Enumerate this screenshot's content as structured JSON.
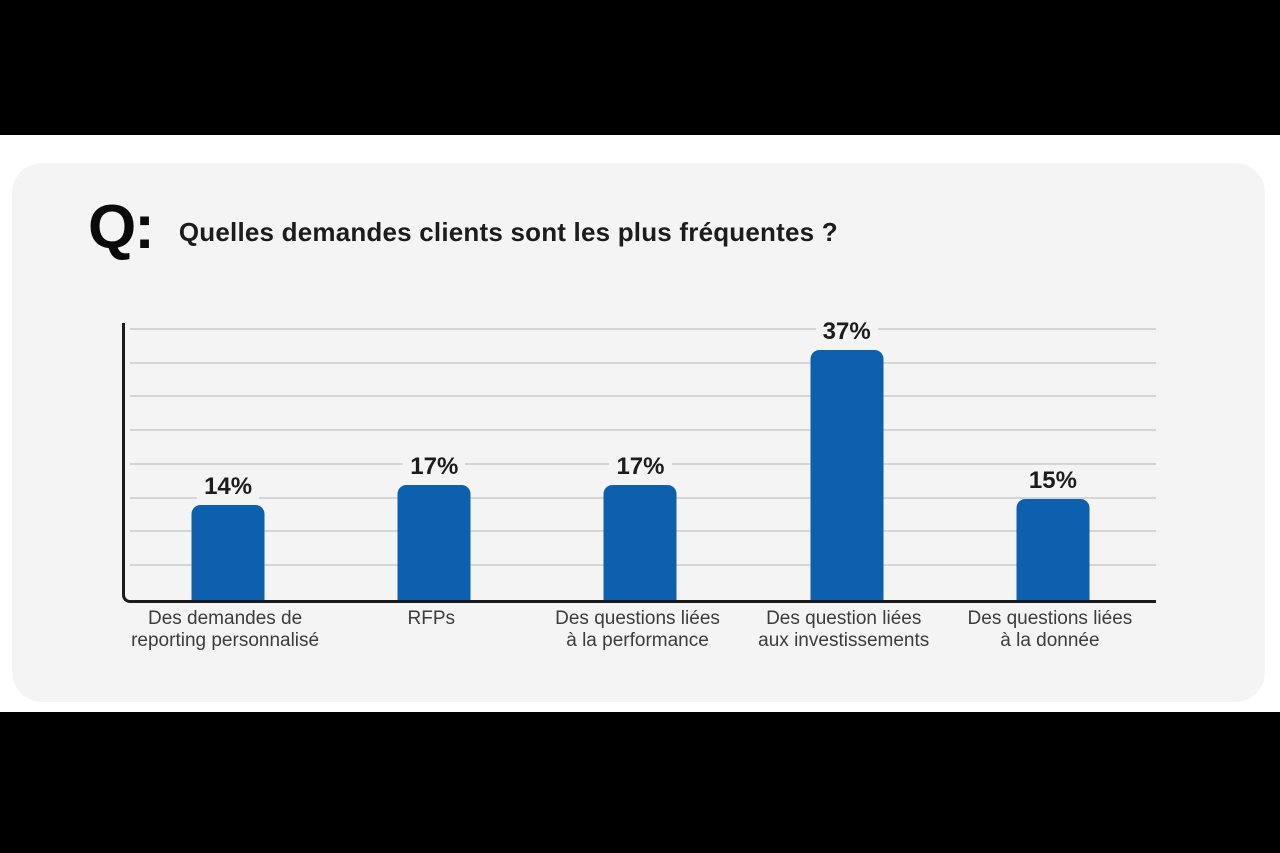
{
  "header": {
    "q_mark": "Q:",
    "title": "Quelles demandes clients sont les plus fréquentes ?"
  },
  "chart_data": {
    "type": "bar",
    "title": "Quelles demandes clients sont les plus fréquentes ?",
    "categories": [
      "Des demandes de\nreporting personnalisé",
      "RFPs",
      "Des questions liées\nà la performance",
      "Des question liées\naux investissements",
      "Des questions liées\nà la donnée"
    ],
    "values": [
      14,
      17,
      17,
      37,
      15
    ],
    "value_labels": [
      "14%",
      "17%",
      "17%",
      "37%",
      "15%"
    ],
    "xlabel": "",
    "ylabel": "",
    "ylim": [
      0,
      41
    ],
    "gridlines": [
      5,
      10,
      15,
      20,
      25,
      30,
      35,
      40
    ],
    "grid": true,
    "legend": false,
    "bar_color": "#0d60ae",
    "plot_background": "#f5f4f5",
    "gridline_color": "#d6d5d6",
    "axis_color": "#1c1c1c"
  }
}
